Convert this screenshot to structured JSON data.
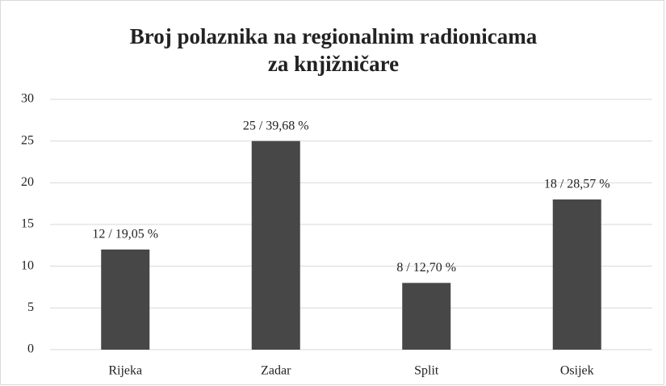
{
  "chart_data": {
    "type": "bar",
    "title": [
      "Broj polaznika  na regionalnim radionicama",
      "za knjižničare"
    ],
    "categories": [
      "Rijeka",
      "Zadar",
      "Split",
      "Osijek"
    ],
    "values": [
      12,
      25,
      8,
      18
    ],
    "value_labels": [
      "12 / 19,05 %",
      "25 / 39,68 %",
      "8 / 12,70 %",
      "18 / 28,57 %"
    ],
    "color": "#474747",
    "ylim": [
      0,
      30
    ],
    "yticks": [
      0,
      5,
      10,
      15,
      20,
      25,
      30
    ],
    "grid": true
  }
}
